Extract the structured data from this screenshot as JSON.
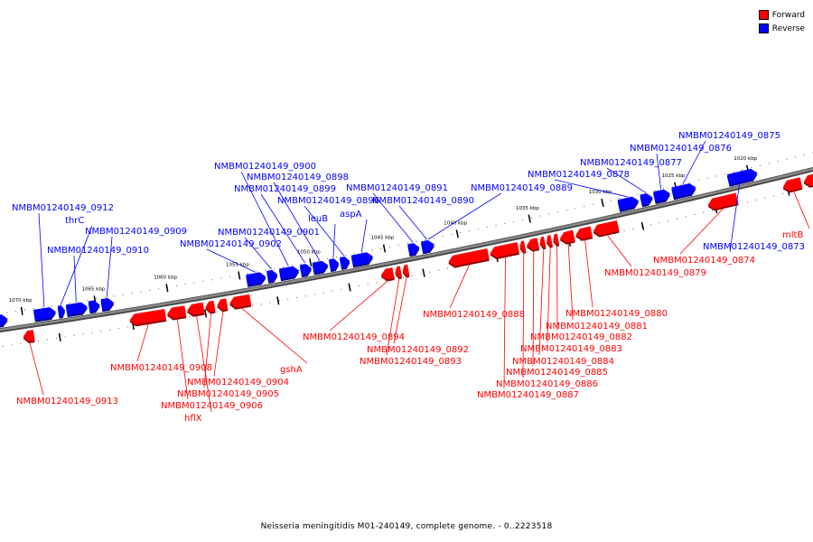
{
  "legend": [
    {
      "label": "Forward",
      "color": "#ff0000"
    },
    {
      "label": "Reverse",
      "color": "#0000ff"
    }
  ],
  "caption": "Neisseria meningitidis M01-240149, complete genome. - 0..2223518",
  "colors": {
    "forward": "#ff0000",
    "reverse": "#0000ff",
    "backbone": "#888888"
  },
  "ticks": [
    {
      "label": "1070 kbp",
      "t": 0.04
    },
    {
      "label": "1065 kbp",
      "t": 0.128
    },
    {
      "label": "1060 kbp",
      "t": 0.215
    },
    {
      "label": "1055 kbp",
      "t": 0.302
    },
    {
      "label": "1050 kbp",
      "t": 0.388
    },
    {
      "label": "1045 kbp",
      "t": 0.477
    },
    {
      "label": "1040 kbp",
      "t": 0.565
    },
    {
      "label": "1035 kbp",
      "t": 0.652
    },
    {
      "label": "1030 kbp",
      "t": 0.74
    },
    {
      "label": "1025 kbp",
      "t": 0.828
    },
    {
      "label": "1020 kbp",
      "t": 0.915
    }
  ],
  "features": [
    {
      "name": "",
      "strand": "reverse",
      "t0": -0.005,
      "t1": 0.022
    },
    {
      "name": "NMBM01240149_0913",
      "strand": "forward",
      "t0": 0.037,
      "t1": 0.05
    },
    {
      "name": "NMBM01240149_0912",
      "strand": "reverse",
      "t0": 0.054,
      "t1": 0.08
    },
    {
      "name": "thrC",
      "strand": "reverse",
      "t0": 0.083,
      "t1": 0.091
    },
    {
      "name": "NMBM01240149_0910",
      "strand": "reverse",
      "t0": 0.093,
      "t1": 0.118
    },
    {
      "name": "",
      "strand": "reverse",
      "t0": 0.12,
      "t1": 0.133
    },
    {
      "name": "NMBM01240149_0909",
      "strand": "reverse",
      "t0": 0.135,
      "t1": 0.15
    },
    {
      "name": "NMBM01240149_0908",
      "strand": "forward",
      "t0": 0.165,
      "t1": 0.208
    },
    {
      "name": "NMBM01240149_0906",
      "strand": "forward",
      "t0": 0.21,
      "t1": 0.232
    },
    {
      "name": "hflX",
      "strand": "forward",
      "t0": 0.234,
      "t1": 0.254
    },
    {
      "name": "NMBM01240149_0905",
      "strand": "forward",
      "t0": 0.256,
      "t1": 0.267
    },
    {
      "name": "NMBM01240149_0904",
      "strand": "forward",
      "t0": 0.27,
      "t1": 0.282
    },
    {
      "name": "gshA",
      "strand": "forward",
      "t0": 0.285,
      "t1": 0.31
    },
    {
      "name": "NMBM01240149_0902",
      "strand": "reverse",
      "t0": 0.31,
      "t1": 0.333
    },
    {
      "name": "NMBM01240149_0901",
      "strand": "reverse",
      "t0": 0.335,
      "t1": 0.347
    },
    {
      "name": "NMBM01240149_0900",
      "strand": "reverse",
      "t0": 0.35,
      "t1": 0.373
    },
    {
      "name": "NMBM01240149_0899",
      "strand": "reverse",
      "t0": 0.375,
      "t1": 0.388
    },
    {
      "name": "NMBM01240149_0898",
      "strand": "reverse",
      "t0": 0.39,
      "t1": 0.408
    },
    {
      "name": "leuB",
      "strand": "reverse",
      "t0": 0.41,
      "t1": 0.421
    },
    {
      "name": "NMBM01240149_0896",
      "strand": "reverse",
      "t0": 0.423,
      "t1": 0.434
    },
    {
      "name": "aspA",
      "strand": "reverse",
      "t0": 0.437,
      "t1": 0.462
    },
    {
      "name": "NMBM01240149_0894",
      "strand": "forward",
      "t0": 0.467,
      "t1": 0.482
    },
    {
      "name": "NMBM01240149_0893",
      "strand": "forward",
      "t0": 0.484,
      "t1": 0.491
    },
    {
      "name": "NMBM01240149_0892",
      "strand": "forward",
      "t0": 0.493,
      "t1": 0.5
    },
    {
      "name": "NMBM01240149_0891",
      "strand": "reverse",
      "t0": 0.505,
      "t1": 0.518
    },
    {
      "name": "NMBM01240149_0890",
      "strand": "reverse",
      "t0": 0.521,
      "t1": 0.536
    },
    {
      "name": "NMBM01240149_0888",
      "strand": "forward",
      "t0": 0.548,
      "t1": 0.596
    },
    {
      "name": "NMBM01240149_0887",
      "strand": "forward",
      "t0": 0.598,
      "t1": 0.632
    },
    {
      "name": "NMBM01240149_0886",
      "strand": "forward",
      "t0": 0.634,
      "t1": 0.64
    },
    {
      "name": "NMBM01240149_0885",
      "strand": "forward",
      "t0": 0.642,
      "t1": 0.656
    },
    {
      "name": "NMBM01240149_0884",
      "strand": "forward",
      "t0": 0.658,
      "t1": 0.664
    },
    {
      "name": "NMBM01240149_0883",
      "strand": "forward",
      "t0": 0.666,
      "t1": 0.672
    },
    {
      "name": "NMBM01240149_0882",
      "strand": "forward",
      "t0": 0.674,
      "t1": 0.68
    },
    {
      "name": "NMBM01240149_0881",
      "strand": "forward",
      "t0": 0.682,
      "t1": 0.699
    },
    {
      "name": "NMBM01240149_0880",
      "strand": "forward",
      "t0": 0.701,
      "t1": 0.72
    },
    {
      "name": "NMBM01240149_0879",
      "strand": "forward",
      "t0": 0.722,
      "t1": 0.752
    },
    {
      "name": "NMBM01240149_0878",
      "strand": "reverse",
      "t0": 0.758,
      "t1": 0.782
    },
    {
      "name": "NMBM01240149_0877",
      "strand": "reverse",
      "t0": 0.785,
      "t1": 0.799
    },
    {
      "name": "NMBM01240149_0876",
      "strand": "reverse",
      "t0": 0.801,
      "t1": 0.82
    },
    {
      "name": "NMBM01240149_0875",
      "strand": "reverse",
      "t0": 0.823,
      "t1": 0.851
    },
    {
      "name": "NMBM01240149_0874",
      "strand": "forward",
      "t0": 0.86,
      "t1": 0.895
    },
    {
      "name": "NMBM01240149_0873",
      "strand": "reverse",
      "t0": 0.89,
      "t1": 0.925
    },
    {
      "name": "mltB",
      "strand": "forward",
      "t0": 0.95,
      "t1": 0.972
    },
    {
      "name": "",
      "strand": "forward",
      "t0": 0.975,
      "t1": 1.0
    }
  ]
}
